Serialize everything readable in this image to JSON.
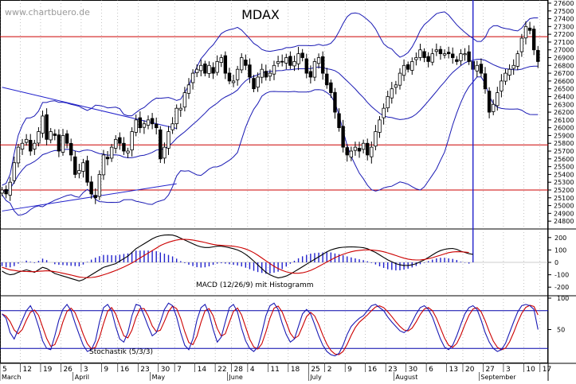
{
  "watermark": "www.chartbuero.de",
  "chart_data": {
    "type": "line",
    "title": "MDAX",
    "colors": {
      "candles": "#000000",
      "bollinger": "#1a1ab4",
      "trendline": "#2222cc",
      "resistance": "#cc0000",
      "macd_line": "#000000",
      "macd_signal": "#cc0000",
      "macd_hist": "#2222cc",
      "stoch_k": "#1a1ab4",
      "stoch_d": "#cc0000",
      "stoch_levels": "#0000aa",
      "grid": "#888888"
    },
    "price_panel": {
      "y_ticks": [
        24800,
        24900,
        25000,
        25100,
        25200,
        25300,
        25400,
        25500,
        25600,
        25700,
        25800,
        25900,
        26000,
        26100,
        26200,
        26300,
        26400,
        26500,
        26600,
        26700,
        26800,
        26900,
        27000,
        27100,
        27200,
        27300,
        27400,
        27500,
        27600
      ],
      "ylim": [
        24720,
        27620
      ],
      "horizontal_lines": [
        27170,
        25780,
        25200
      ],
      "trendlines": [
        {
          "x1": 0,
          "y1": 26520,
          "x2": 43,
          "y2": 25990
        },
        {
          "x1": 0,
          "y1": 24930,
          "x2": 43,
          "y2": 25280
        }
      ],
      "closes": [
        25200,
        25150,
        25300,
        25550,
        25750,
        25800,
        25850,
        25700,
        25800,
        25950,
        26150,
        25850,
        25950,
        25900,
        25700,
        25900,
        25800,
        25650,
        25400,
        25450,
        25550,
        25300,
        25150,
        25100,
        25400,
        25650,
        25600,
        25750,
        25850,
        25800,
        25700,
        25700,
        25950,
        26100,
        26000,
        26050,
        26100,
        26050,
        26000,
        25600,
        25750,
        25950,
        26050,
        26250,
        26250,
        26450,
        26550,
        26700,
        26750,
        26800,
        26700,
        26800,
        26700,
        26850,
        26900,
        26700,
        26600,
        26600,
        26750,
        26900,
        26800,
        26650,
        26500,
        26650,
        26750,
        26650,
        26700,
        26800,
        26850,
        26850,
        26900,
        26800,
        26850,
        26950,
        26900,
        26700,
        26650,
        26850,
        26900,
        26700,
        26550,
        26450,
        26200,
        26000,
        25750,
        25650,
        25700,
        25750,
        25700,
        25800,
        25650,
        25750,
        25950,
        26100,
        26250,
        26400,
        26500,
        26550,
        26700,
        26800,
        26750,
        26850,
        26900,
        27000,
        26900,
        26850,
        26950,
        27000,
        26950,
        26950,
        26950,
        26900,
        26850,
        26950,
        26950,
        26850,
        26750,
        26800,
        26700,
        26500,
        26200,
        26300,
        26450,
        26600,
        26700,
        26750,
        26800,
        26950,
        27150,
        27300,
        27250,
        27000,
        26850
      ]
    },
    "macd_panel": {
      "label": "MACD (12/26/9) mit Histogramm",
      "y_ticks": [
        200,
        100,
        0,
        -100,
        -200
      ],
      "ylim": [
        -250,
        250
      ],
      "macd": [
        -70,
        -90,
        -100,
        -95,
        -80,
        -70,
        -60,
        -70,
        -80,
        -60,
        -40,
        -50,
        -70,
        -90,
        -100,
        -110,
        -120,
        -130,
        -140,
        -150,
        -140,
        -120,
        -100,
        -80,
        -60,
        -40,
        -30,
        -20,
        -10,
        10,
        30,
        50,
        80,
        110,
        130,
        150,
        170,
        190,
        205,
        215,
        220,
        222,
        220,
        210,
        195,
        180,
        165,
        150,
        135,
        125,
        120,
        120,
        125,
        130,
        130,
        125,
        118,
        110,
        100,
        85,
        65,
        40,
        10,
        -20,
        -50,
        -80,
        -100,
        -115,
        -125,
        -120,
        -110,
        -95,
        -75,
        -55,
        -35,
        -15,
        5,
        25,
        45,
        65,
        85,
        100,
        110,
        118,
        122,
        124,
        125,
        124,
        122,
        118,
        110,
        95,
        80,
        60,
        40,
        20,
        5,
        -10,
        -20,
        -25,
        -25,
        -20,
        -10,
        5,
        20,
        40,
        60,
        80,
        95,
        105,
        110,
        112,
        105,
        90,
        80,
        70,
        65
      ],
      "signal": [
        -40,
        -50,
        -60,
        -65,
        -70,
        -72,
        -74,
        -75,
        -75,
        -72,
        -70,
        -68,
        -70,
        -75,
        -80,
        -88,
        -95,
        -102,
        -110,
        -118,
        -122,
        -124,
        -122,
        -118,
        -110,
        -100,
        -90,
        -78,
        -66,
        -52,
        -38,
        -22,
        -5,
        15,
        35,
        55,
        75,
        95,
        115,
        135,
        150,
        162,
        172,
        180,
        185,
        186,
        184,
        180,
        174,
        167,
        160,
        152,
        145,
        140,
        137,
        135,
        133,
        130,
        125,
        118,
        108,
        95,
        78,
        58,
        35,
        12,
        -10,
        -32,
        -50,
        -65,
        -76,
        -84,
        -88,
        -88,
        -84,
        -76,
        -65,
        -50,
        -33,
        -15,
        3,
        20,
        38,
        52,
        65,
        76,
        85,
        92,
        97,
        100,
        101,
        100,
        97,
        92,
        85,
        76,
        66,
        55,
        44,
        34,
        26,
        21,
        19,
        20,
        24,
        30,
        38,
        48,
        58,
        68,
        78,
        84,
        86,
        85,
        83,
        80
      ]
    },
    "stoch_panel": {
      "label": "Stochastik (5/3/3)",
      "y_ticks": [
        100,
        50
      ],
      "ylim": [
        0,
        100
      ],
      "levels": [
        80,
        20
      ],
      "k": [
        75,
        68,
        45,
        35,
        50,
        65,
        80,
        88,
        75,
        55,
        32,
        20,
        18,
        40,
        65,
        82,
        90,
        80,
        60,
        42,
        25,
        15,
        18,
        32,
        62,
        85,
        90,
        80,
        55,
        35,
        30,
        45,
        72,
        90,
        88,
        72,
        55,
        40,
        45,
        62,
        82,
        92,
        88,
        70,
        45,
        25,
        18,
        35,
        65,
        85,
        90,
        75,
        50,
        30,
        38,
        62,
        85,
        90,
        78,
        52,
        32,
        20,
        15,
        22,
        45,
        72,
        88,
        92,
        82,
        60,
        42,
        30,
        35,
        55,
        75,
        82,
        75,
        58,
        40,
        25,
        15,
        10,
        8,
        12,
        25,
        42,
        55,
        62,
        68,
        72,
        80,
        88,
        90,
        85,
        80,
        70,
        62,
        55,
        48,
        45,
        50,
        62,
        75,
        85,
        88,
        82,
        70,
        52,
        35,
        22,
        18,
        25,
        40,
        58,
        75,
        85,
        88,
        82,
        65,
        45,
        30,
        20,
        15,
        18,
        28,
        45,
        62,
        78,
        88,
        90,
        88,
        82,
        50
      ]
    },
    "x_axis": {
      "months": [
        {
          "label": "March",
          "at": 0
        },
        {
          "label": "April",
          "at": 18
        },
        {
          "label": "May",
          "at": 37
        },
        {
          "label": "June",
          "at": 56
        },
        {
          "label": "July",
          "at": 76
        },
        {
          "label": "August",
          "at": 97
        },
        {
          "label": "September",
          "at": 118
        }
      ],
      "days": [
        {
          "label": "5",
          "at": 0
        },
        {
          "label": "12",
          "at": 5
        },
        {
          "label": "19",
          "at": 10
        },
        {
          "label": "26",
          "at": 15
        },
        {
          "label": "3",
          "at": 20
        },
        {
          "label": "9",
          "at": 25
        },
        {
          "label": "16",
          "at": 29
        },
        {
          "label": "23",
          "at": 34
        },
        {
          "label": "30",
          "at": 39
        },
        {
          "label": "7",
          "at": 43
        },
        {
          "label": "14",
          "at": 48
        },
        {
          "label": "22",
          "at": 53
        },
        {
          "label": "28",
          "at": 57
        },
        {
          "label": "4",
          "at": 61
        },
        {
          "label": "11",
          "at": 66
        },
        {
          "label": "18",
          "at": 71
        },
        {
          "label": "25",
          "at": 76
        },
        {
          "label": "2",
          "at": 80
        },
        {
          "label": "9",
          "at": 85
        },
        {
          "label": "16",
          "at": 90
        },
        {
          "label": "23",
          "at": 95
        },
        {
          "label": "30",
          "at": 100
        },
        {
          "label": "6",
          "at": 105
        },
        {
          "label": "13",
          "at": 110
        },
        {
          "label": "20",
          "at": 114
        },
        {
          "label": "27",
          "at": 119
        },
        {
          "label": "3",
          "at": 124
        },
        {
          "label": "10",
          "at": 129
        },
        {
          "label": "17",
          "at": 133
        }
      ]
    }
  }
}
